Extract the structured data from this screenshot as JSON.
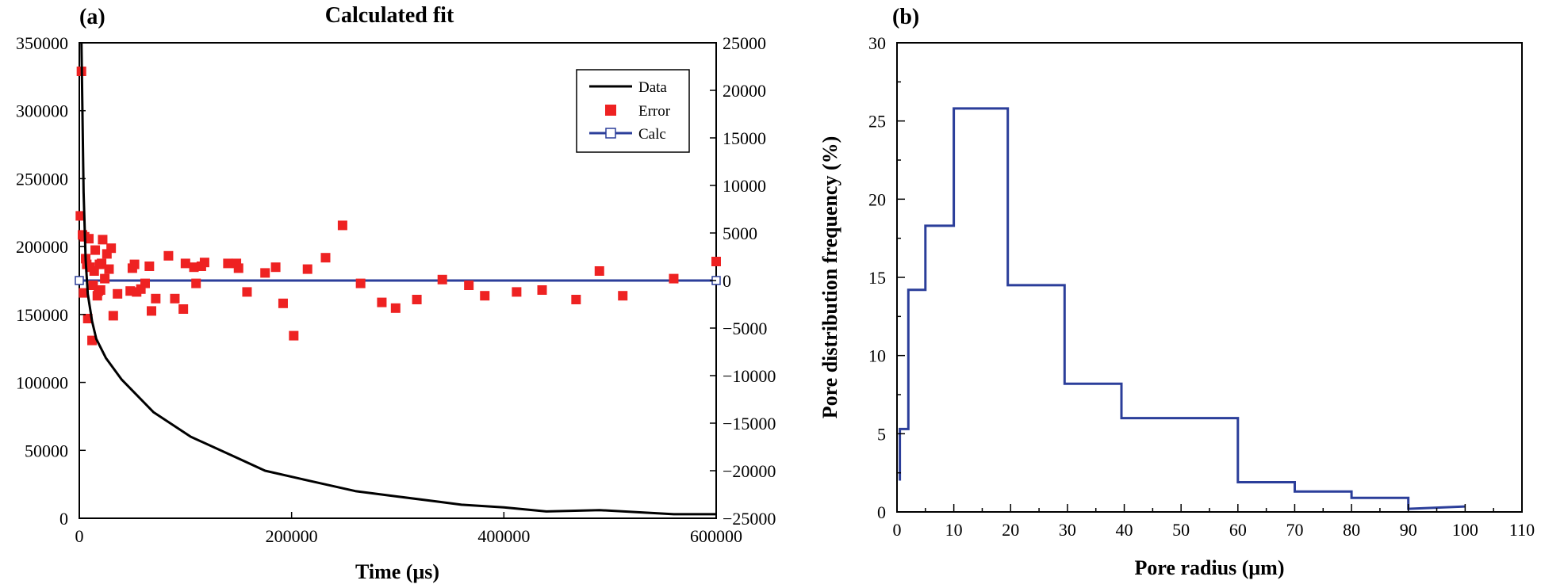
{
  "chart_data": [
    {
      "panel_label": "(a)",
      "title": "Calculated fit",
      "type": "line",
      "xlabel": "Time (μs)",
      "ylabel": "",
      "y2label": "",
      "xlim": [
        0,
        600000
      ],
      "ylim": [
        0,
        350000
      ],
      "y2lim": [
        -25000,
        25000
      ],
      "xticks": [
        "0",
        "200000",
        "400000",
        "600000"
      ],
      "yticks": [
        "0",
        "50000",
        "100000",
        "150000",
        "200000",
        "250000",
        "300000",
        "350000"
      ],
      "y2ticks": [
        "-25000",
        "-20000",
        "-15000",
        "-10000",
        "-5000",
        "0",
        "5000",
        "10000",
        "15000",
        "20000",
        "25000"
      ],
      "grid": false,
      "legend_position": "top-right",
      "series": [
        {
          "name": "Data",
          "axis": "left",
          "color": "#000000",
          "style": "line",
          "x": [
            2000,
            4000,
            6000,
            8000,
            12000,
            16000,
            25000,
            40000,
            70000,
            105000,
            150000,
            175000,
            220000,
            260000,
            300000,
            340000,
            360000,
            400000,
            440000,
            490000,
            560000,
            600000
          ],
          "y": [
            350000,
            240000,
            190000,
            165000,
            145000,
            132000,
            118000,
            102000,
            78000,
            60000,
            44000,
            35000,
            27000,
            20000,
            16000,
            12000,
            10000,
            8000,
            5000,
            6000,
            3000,
            3000
          ]
        },
        {
          "name": "Error",
          "axis": "right",
          "color": "#ee2222",
          "style": "scatter",
          "x": [
            1000,
            2000,
            3000,
            4000,
            5000,
            6000,
            7000,
            8000,
            9000,
            10000,
            12000,
            13000,
            14000,
            15000,
            17000,
            18000,
            19000,
            20000,
            21000,
            22000,
            24000,
            26000,
            28000,
            30000,
            32000,
            36000,
            48000,
            50000,
            52000,
            54000,
            58000,
            62000,
            66000,
            68000,
            72000,
            84000,
            90000,
            98000,
            100000,
            108000,
            110000,
            115000,
            118000,
            140000,
            148000,
            150000,
            158000,
            175000,
            185000,
            192000,
            202000,
            215000,
            232000,
            248000,
            265000,
            285000,
            298000,
            318000,
            342000,
            367000,
            382000,
            412000,
            436000,
            468000,
            490000,
            512000,
            560000,
            600000
          ],
          "y": [
            6800,
            22000,
            4800,
            -1300,
            4600,
            2300,
            1700,
            -4000,
            4400,
            1400,
            -6300,
            -500,
            1000,
            3200,
            -1600,
            -1100,
            1700,
            -1000,
            1800,
            4300,
            200,
            2800,
            1200,
            3400,
            -3700,
            -1400,
            -1100,
            1300,
            1700,
            -1200,
            -900,
            -300,
            1500,
            -3200,
            -1900,
            2600,
            -1900,
            -3000,
            1800,
            1400,
            -300,
            1500,
            1900,
            1800,
            1800,
            1300,
            -1200,
            800,
            1400,
            -2400,
            -5800,
            1200,
            2400,
            5800,
            -300,
            -2300,
            -2900,
            -2000,
            100,
            -500,
            -1600,
            -1200,
            -1000,
            -2000,
            1000,
            -1600,
            200,
            2000
          ]
        },
        {
          "name": "Calc",
          "axis": "right",
          "color": "#2b3e9a",
          "style": "line-square",
          "x": [
            0,
            600000
          ],
          "y": [
            0,
            0
          ]
        }
      ]
    },
    {
      "panel_label": "(b)",
      "title": "",
      "type": "line",
      "xlabel": "Pore radius (μm)",
      "ylabel": "Pore distribution frequency (%)",
      "xlim": [
        0,
        110
      ],
      "ylim": [
        0,
        30
      ],
      "xticks": [
        "0",
        "10",
        "20",
        "30",
        "40",
        "50",
        "60",
        "70",
        "80",
        "90",
        "100",
        "110"
      ],
      "yticks": [
        "0",
        "5",
        "10",
        "15",
        "20",
        "25",
        "30"
      ],
      "grid": false,
      "series": [
        {
          "color": "#2b3e9a",
          "style": "step",
          "x": [
            0.5,
            0.5,
            1,
            1,
            2,
            2,
            5,
            5,
            10,
            10,
            19.5,
            19.5,
            29.5,
            29.5,
            39.5,
            39.5,
            60,
            60,
            70,
            70,
            80,
            80,
            90,
            90,
            100
          ],
          "y": [
            2,
            5.3,
            5.3,
            5.3,
            5.3,
            14.2,
            14.2,
            18.3,
            18.3,
            25.8,
            25.8,
            14.5,
            14.5,
            8.2,
            8.2,
            6,
            6,
            1.9,
            1.9,
            1.3,
            1.3,
            0.9,
            0.9,
            0.2,
            0.35
          ]
        }
      ]
    }
  ]
}
